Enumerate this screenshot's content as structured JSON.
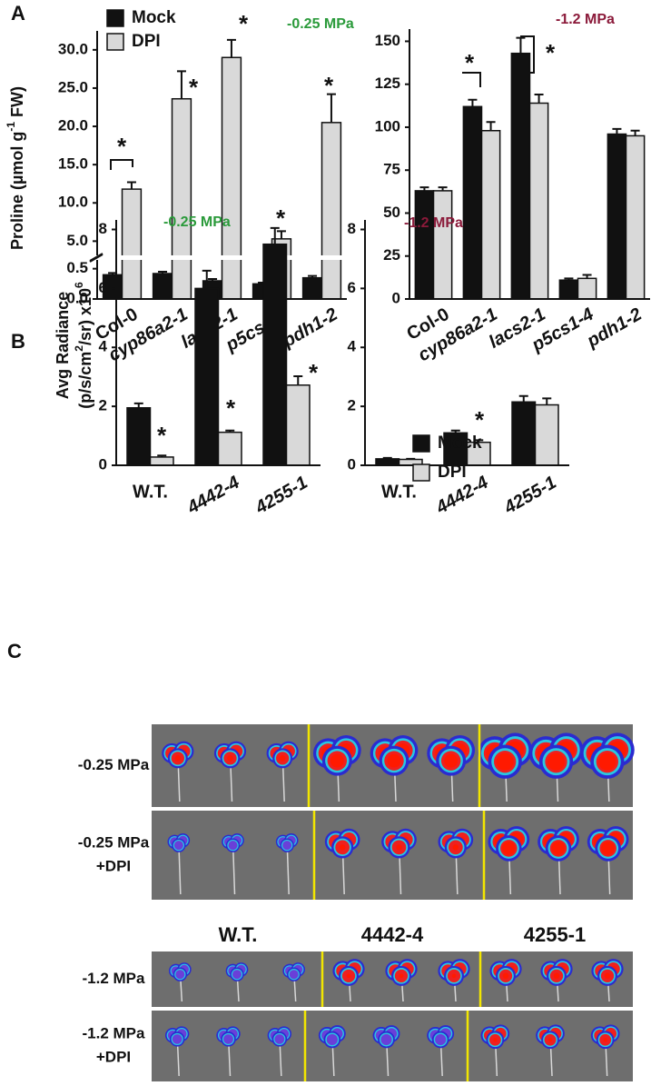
{
  "panel_labels": [
    "A",
    "B",
    "C"
  ],
  "chart_data": [
    {
      "type": "bar",
      "title": "-0.25 MPa",
      "title_color": "#2a9a3a",
      "ylabel": [
        [
          "Proline (µmol g",
          "-1",
          " FW)"
        ]
      ],
      "categories": [
        "Col-0",
        "cyp86a2-1",
        "lacs2-1",
        "p5cs1-4",
        "pdh1-2"
      ],
      "series": [
        {
          "name": "Mock",
          "color": "#111111",
          "values": [
            0.4,
            0.42,
            0.3,
            0.25,
            0.35
          ],
          "errors": [
            0.03,
            0.03,
            0.03,
            0.02,
            0.03
          ]
        },
        {
          "name": "DPI",
          "color": "#d9d9d9",
          "values": [
            11.8,
            23.6,
            29.0,
            5.3,
            20.5
          ],
          "errors": [
            0.9,
            3.6,
            2.3,
            1.0,
            3.7
          ]
        }
      ],
      "ylim": [
        0,
        32
      ],
      "axis_break": [
        0.6,
        3.5
      ],
      "yticks": [
        {
          "value": 0,
          "label": "0.0"
        },
        {
          "value": 0.5,
          "label": "0.5"
        },
        {
          "value": 5,
          "label": "5.0"
        },
        {
          "value": 10,
          "label": "10.0"
        },
        {
          "value": 15,
          "label": "15.0"
        },
        {
          "value": 20,
          "label": "20.0"
        },
        {
          "value": 25,
          "label": "25.0"
        },
        {
          "value": 30,
          "label": "30.0"
        }
      ],
      "legend": "top-left",
      "annotations": [
        "*",
        "*",
        "*",
        "*",
        "*"
      ]
    },
    {
      "type": "bar",
      "title": "-1.2 MPa",
      "title_color": "#8b1a3a",
      "categories": [
        "Col-0",
        "cyp86a2-1",
        "lacs2-1",
        "p5cs1-4",
        "pdh1-2"
      ],
      "series": [
        {
          "name": "Mock",
          "color": "#111111",
          "values": [
            63,
            112,
            143,
            11,
            96
          ],
          "errors": [
            2,
            4,
            9,
            1,
            3
          ]
        },
        {
          "name": "DPI",
          "color": "#d9d9d9",
          "values": [
            63,
            98,
            114,
            12,
            95
          ],
          "errors": [
            2,
            5,
            5,
            2,
            3
          ]
        }
      ],
      "ylim": [
        0,
        155
      ],
      "yticks": [
        0,
        25,
        50,
        75,
        100,
        125,
        150
      ],
      "legend": false,
      "annotations": [
        "*",
        "*"
      ]
    },
    {
      "type": "bar",
      "title": "-0.25 MPa",
      "title_color": "#2a9a3a",
      "ylabel": [
        [
          "Avg Radiance"
        ],
        [
          "(p/s/cm",
          "2",
          "/sr) x10",
          "6"
        ]
      ],
      "categories": [
        "W.T.",
        "4442-4",
        "4255-1"
      ],
      "series": [
        {
          "name": "Mock",
          "color": "#111111",
          "values": [
            1.95,
            6.0,
            7.5
          ],
          "errors": [
            0.15,
            0.6,
            0.55
          ]
        },
        {
          "name": "DPI",
          "color": "#d9d9d9",
          "values": [
            0.28,
            1.12,
            2.72
          ],
          "errors": [
            0.05,
            0.06,
            0.3
          ]
        }
      ],
      "ylim": [
        0,
        8.2
      ],
      "yticks": [
        0,
        2,
        4,
        6,
        8
      ],
      "legend": false,
      "annotations": [
        "*",
        "*",
        "*"
      ]
    },
    {
      "type": "bar",
      "title": "-1.2 MPa",
      "title_color": "#8b1a3a",
      "categories": [
        "W.T.",
        "4442-4",
        "4255-1"
      ],
      "series": [
        {
          "name": "Mock",
          "color": "#111111",
          "values": [
            0.22,
            1.1,
            2.15
          ],
          "errors": [
            0.03,
            0.08,
            0.2
          ]
        },
        {
          "name": "DPI",
          "color": "#d9d9d9",
          "values": [
            0.2,
            0.78,
            2.05
          ],
          "errors": [
            0.02,
            0.07,
            0.22
          ]
        }
      ],
      "ylim": [
        0,
        8.2
      ],
      "yticks": [
        0,
        2,
        4,
        6,
        8
      ],
      "legend": "upper-center",
      "annotations": [
        "*"
      ]
    }
  ],
  "panel_c": {
    "row_labels": [
      [
        "-0.25 MPa"
      ],
      [
        "-0.25 MPa",
        "+DPI"
      ],
      [
        "-1.2 MPa"
      ],
      [
        "-1.2 MPa",
        "+DPI"
      ]
    ],
    "column_labels": [
      "W.T.",
      "4442-4",
      "4255-1"
    ]
  }
}
